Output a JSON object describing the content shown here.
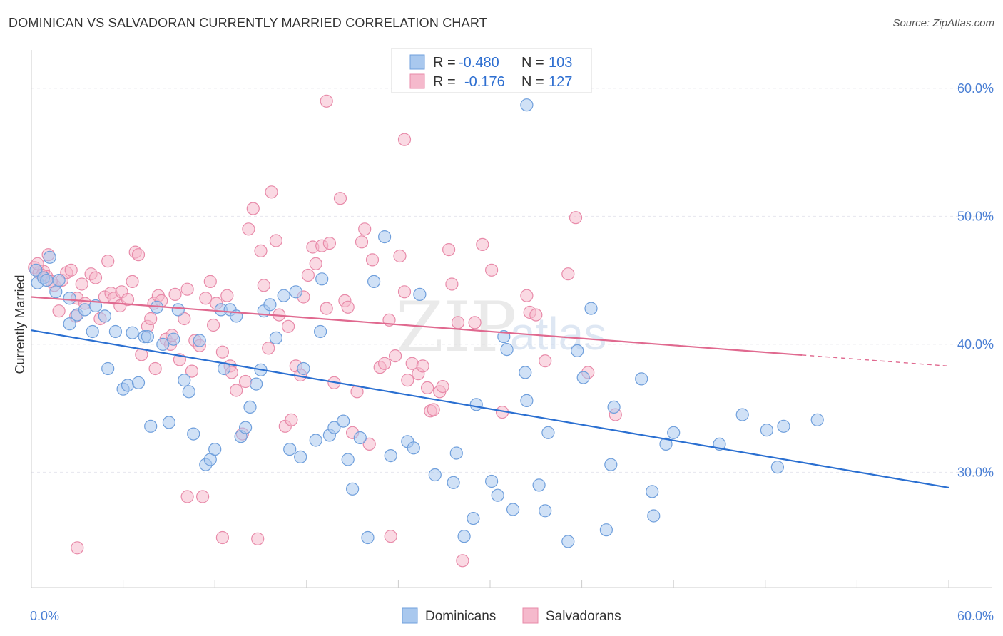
{
  "title": "DOMINICAN VS SALVADORAN CURRENTLY MARRIED CORRELATION CHART",
  "source": "Source: ZipAtlas.com",
  "watermark": {
    "zip": "ZIP",
    "atlas": "atlas"
  },
  "colors": {
    "blue_fill": "#a9c8ee",
    "blue_stroke": "#6f9fdc",
    "blue_line": "#2a6fd1",
    "pink_fill": "#f5b9cc",
    "pink_stroke": "#e88aa9",
    "pink_line": "#e0698f",
    "grid": "#e6e6ee",
    "tick_text": "#4a7fd4"
  },
  "legend_top": {
    "rows": [
      {
        "r_label": "R =",
        "r_value": "-0.480",
        "n_label": "N =",
        "n_value": "103",
        "series": "Dominicans"
      },
      {
        "r_label": "R =",
        "r_value": "-0.176",
        "n_label": "N =",
        "n_value": "127",
        "series": "Salvadorans"
      }
    ]
  },
  "legend_bottom": [
    "Dominicans",
    "Salvadorans"
  ],
  "chart_data": {
    "type": "scatter",
    "xlabel": "",
    "ylabel": "Currently Married",
    "xlim": [
      0,
      60
    ],
    "ylim": [
      21,
      63
    ],
    "x_tick_labels": [
      {
        "value": 0,
        "label": "0.0%"
      },
      {
        "value": 60,
        "label": "60.0%"
      }
    ],
    "y_tick_labels": [
      {
        "value": 30,
        "label": "30.0%"
      },
      {
        "value": 40,
        "label": "40.0%"
      },
      {
        "value": 50,
        "label": "50.0%"
      },
      {
        "value": 60,
        "label": "60.0%"
      }
    ],
    "grid": true,
    "legend_placement": "top-center",
    "series": [
      {
        "name": "Dominicans",
        "r": -0.48,
        "n": 103,
        "trend": {
          "x": [
            0,
            60
          ],
          "y": [
            41.1,
            28.8
          ],
          "dashed_from": null
        },
        "points": [
          [
            0.3,
            45.8
          ],
          [
            0.4,
            44.8
          ],
          [
            0.8,
            45.2
          ],
          [
            1.0,
            45.0
          ],
          [
            1.2,
            46.8
          ],
          [
            1.6,
            44.1
          ],
          [
            1.8,
            45.0
          ],
          [
            2.5,
            43.6
          ],
          [
            2.5,
            41.6
          ],
          [
            3.0,
            42.3
          ],
          [
            3.5,
            42.7
          ],
          [
            4.0,
            41.0
          ],
          [
            4.2,
            43.0
          ],
          [
            4.8,
            42.2
          ],
          [
            5.0,
            38.1
          ],
          [
            5.5,
            41.0
          ],
          [
            6.0,
            36.5
          ],
          [
            6.3,
            36.8
          ],
          [
            6.6,
            40.9
          ],
          [
            7.0,
            37.0
          ],
          [
            7.4,
            40.6
          ],
          [
            7.6,
            40.6
          ],
          [
            7.8,
            33.6
          ],
          [
            8.2,
            42.9
          ],
          [
            8.6,
            40.0
          ],
          [
            9.0,
            33.9
          ],
          [
            9.3,
            40.4
          ],
          [
            9.6,
            42.7
          ],
          [
            10.0,
            37.2
          ],
          [
            10.3,
            36.3
          ],
          [
            10.6,
            33.0
          ],
          [
            11.0,
            40.3
          ],
          [
            11.4,
            30.6
          ],
          [
            11.7,
            31.0
          ],
          [
            12.0,
            31.8
          ],
          [
            12.4,
            42.7
          ],
          [
            12.6,
            38.1
          ],
          [
            13.0,
            42.7
          ],
          [
            13.4,
            42.2
          ],
          [
            13.7,
            32.8
          ],
          [
            14.0,
            33.5
          ],
          [
            14.3,
            35.1
          ],
          [
            14.7,
            36.9
          ],
          [
            15.0,
            38.0
          ],
          [
            15.2,
            42.6
          ],
          [
            15.6,
            43.1
          ],
          [
            16.0,
            40.5
          ],
          [
            16.5,
            43.8
          ],
          [
            16.9,
            31.8
          ],
          [
            17.3,
            44.1
          ],
          [
            17.6,
            31.2
          ],
          [
            17.8,
            38.1
          ],
          [
            18.6,
            32.5
          ],
          [
            18.9,
            41.0
          ],
          [
            19.0,
            45.1
          ],
          [
            19.5,
            32.9
          ],
          [
            19.8,
            33.5
          ],
          [
            20.4,
            34.0
          ],
          [
            20.7,
            31.0
          ],
          [
            21.0,
            28.7
          ],
          [
            21.5,
            32.7
          ],
          [
            22.0,
            24.9
          ],
          [
            22.4,
            44.9
          ],
          [
            23.1,
            48.4
          ],
          [
            23.5,
            31.3
          ],
          [
            24.6,
            32.4
          ],
          [
            25.0,
            31.9
          ],
          [
            25.4,
            43.9
          ],
          [
            26.4,
            29.8
          ],
          [
            27.6,
            29.2
          ],
          [
            27.8,
            31.5
          ],
          [
            28.9,
            26.4
          ],
          [
            29.1,
            35.3
          ],
          [
            30.1,
            29.3
          ],
          [
            30.5,
            28.2
          ],
          [
            30.9,
            40.6
          ],
          [
            31.1,
            39.6
          ],
          [
            31.5,
            27.1
          ],
          [
            32.3,
            37.8
          ],
          [
            32.4,
            35.6
          ],
          [
            33.2,
            29.0
          ],
          [
            33.6,
            27.0
          ],
          [
            33.8,
            33.1
          ],
          [
            35.1,
            24.6
          ],
          [
            35.7,
            39.5
          ],
          [
            36.1,
            37.4
          ],
          [
            36.6,
            42.8
          ],
          [
            37.6,
            25.5
          ],
          [
            37.9,
            30.6
          ],
          [
            38.1,
            35.1
          ],
          [
            39.9,
            37.3
          ],
          [
            40.6,
            28.5
          ],
          [
            40.7,
            26.6
          ],
          [
            41.5,
            32.2
          ],
          [
            42.0,
            33.1
          ],
          [
            45.0,
            32.2
          ],
          [
            46.5,
            34.5
          ],
          [
            48.1,
            33.3
          ],
          [
            48.8,
            30.4
          ],
          [
            49.2,
            33.6
          ],
          [
            51.4,
            34.1
          ],
          [
            32.4,
            58.7
          ],
          [
            28.3,
            25.0
          ]
        ]
      },
      {
        "name": "Salvadorans",
        "r": -0.176,
        "n": 127,
        "trend": {
          "x": [
            0,
            60
          ],
          "y": [
            43.7,
            38.3
          ],
          "dashed_from": 50.4
        },
        "points": [
          [
            0.2,
            46.0
          ],
          [
            0.5,
            45.6
          ],
          [
            0.8,
            45.7
          ],
          [
            1.0,
            45.3
          ],
          [
            1.1,
            47.0
          ],
          [
            1.5,
            44.6
          ],
          [
            1.8,
            42.6
          ],
          [
            2.0,
            45.0
          ],
          [
            2.3,
            45.6
          ],
          [
            2.6,
            45.8
          ],
          [
            2.9,
            42.2
          ],
          [
            3.0,
            43.6
          ],
          [
            3.3,
            44.7
          ],
          [
            3.5,
            43.2
          ],
          [
            3.9,
            45.5
          ],
          [
            4.2,
            45.2
          ],
          [
            4.5,
            42.0
          ],
          [
            4.8,
            43.7
          ],
          [
            5.0,
            46.5
          ],
          [
            5.2,
            44.0
          ],
          [
            5.4,
            43.6
          ],
          [
            5.8,
            43.0
          ],
          [
            5.9,
            44.1
          ],
          [
            6.3,
            43.5
          ],
          [
            6.6,
            44.9
          ],
          [
            6.8,
            47.2
          ],
          [
            7.0,
            47.0
          ],
          [
            7.2,
            39.2
          ],
          [
            7.6,
            41.4
          ],
          [
            7.8,
            42.0
          ],
          [
            8.0,
            43.2
          ],
          [
            8.1,
            38.1
          ],
          [
            8.3,
            43.8
          ],
          [
            8.5,
            43.4
          ],
          [
            8.8,
            40.4
          ],
          [
            9.1,
            40.0
          ],
          [
            9.2,
            40.7
          ],
          [
            9.4,
            43.9
          ],
          [
            9.7,
            38.8
          ],
          [
            10.0,
            42.0
          ],
          [
            10.2,
            44.3
          ],
          [
            10.5,
            37.9
          ],
          [
            10.7,
            40.3
          ],
          [
            11.0,
            39.9
          ],
          [
            11.4,
            43.6
          ],
          [
            11.7,
            44.9
          ],
          [
            11.9,
            41.5
          ],
          [
            12.1,
            43.2
          ],
          [
            12.5,
            39.4
          ],
          [
            12.8,
            43.8
          ],
          [
            13.0,
            38.3
          ],
          [
            13.1,
            37.8
          ],
          [
            13.4,
            36.4
          ],
          [
            13.8,
            33.0
          ],
          [
            14.0,
            37.1
          ],
          [
            14.2,
            49.0
          ],
          [
            14.5,
            50.6
          ],
          [
            15.0,
            47.3
          ],
          [
            15.2,
            44.6
          ],
          [
            15.5,
            39.7
          ],
          [
            15.7,
            51.9
          ],
          [
            16.0,
            48.1
          ],
          [
            16.2,
            42.3
          ],
          [
            16.6,
            33.6
          ],
          [
            16.8,
            41.4
          ],
          [
            17.0,
            34.1
          ],
          [
            17.3,
            38.3
          ],
          [
            17.6,
            37.6
          ],
          [
            17.8,
            43.7
          ],
          [
            18.1,
            45.4
          ],
          [
            18.4,
            47.6
          ],
          [
            18.6,
            46.3
          ],
          [
            19.0,
            47.7
          ],
          [
            19.3,
            42.8
          ],
          [
            19.5,
            47.9
          ],
          [
            19.8,
            37.0
          ],
          [
            20.2,
            51.4
          ],
          [
            20.5,
            43.4
          ],
          [
            20.7,
            42.9
          ],
          [
            21.0,
            33.1
          ],
          [
            21.3,
            36.3
          ],
          [
            21.6,
            48.0
          ],
          [
            21.8,
            49.0
          ],
          [
            22.1,
            32.2
          ],
          [
            22.3,
            46.6
          ],
          [
            22.8,
            38.2
          ],
          [
            23.1,
            38.5
          ],
          [
            23.4,
            41.9
          ],
          [
            23.8,
            39.1
          ],
          [
            24.1,
            46.9
          ],
          [
            24.4,
            44.1
          ],
          [
            24.6,
            37.2
          ],
          [
            24.9,
            38.5
          ],
          [
            25.3,
            37.7
          ],
          [
            25.6,
            38.3
          ],
          [
            25.9,
            36.6
          ],
          [
            26.1,
            34.8
          ],
          [
            26.3,
            34.9
          ],
          [
            26.7,
            36.3
          ],
          [
            26.9,
            36.7
          ],
          [
            27.3,
            47.4
          ],
          [
            27.5,
            44.7
          ],
          [
            27.9,
            41.7
          ],
          [
            28.2,
            23.1
          ],
          [
            29.0,
            41.7
          ],
          [
            29.5,
            47.8
          ],
          [
            30.1,
            45.8
          ],
          [
            30.8,
            34.7
          ],
          [
            32.4,
            43.8
          ],
          [
            32.6,
            42.5
          ],
          [
            33.0,
            42.3
          ],
          [
            33.6,
            38.7
          ],
          [
            35.1,
            45.5
          ],
          [
            35.6,
            49.9
          ],
          [
            36.4,
            37.8
          ],
          [
            38.2,
            34.5
          ],
          [
            10.2,
            28.1
          ],
          [
            11.2,
            28.1
          ],
          [
            12.5,
            24.9
          ],
          [
            19.3,
            59.0
          ],
          [
            24.4,
            56.0
          ],
          [
            23.5,
            25.0
          ],
          [
            3.0,
            24.1
          ],
          [
            14.8,
            24.8
          ],
          [
            0.4,
            46.3
          ],
          [
            0.7,
            45.4
          ],
          [
            1.3,
            44.9
          ]
        ]
      }
    ]
  }
}
